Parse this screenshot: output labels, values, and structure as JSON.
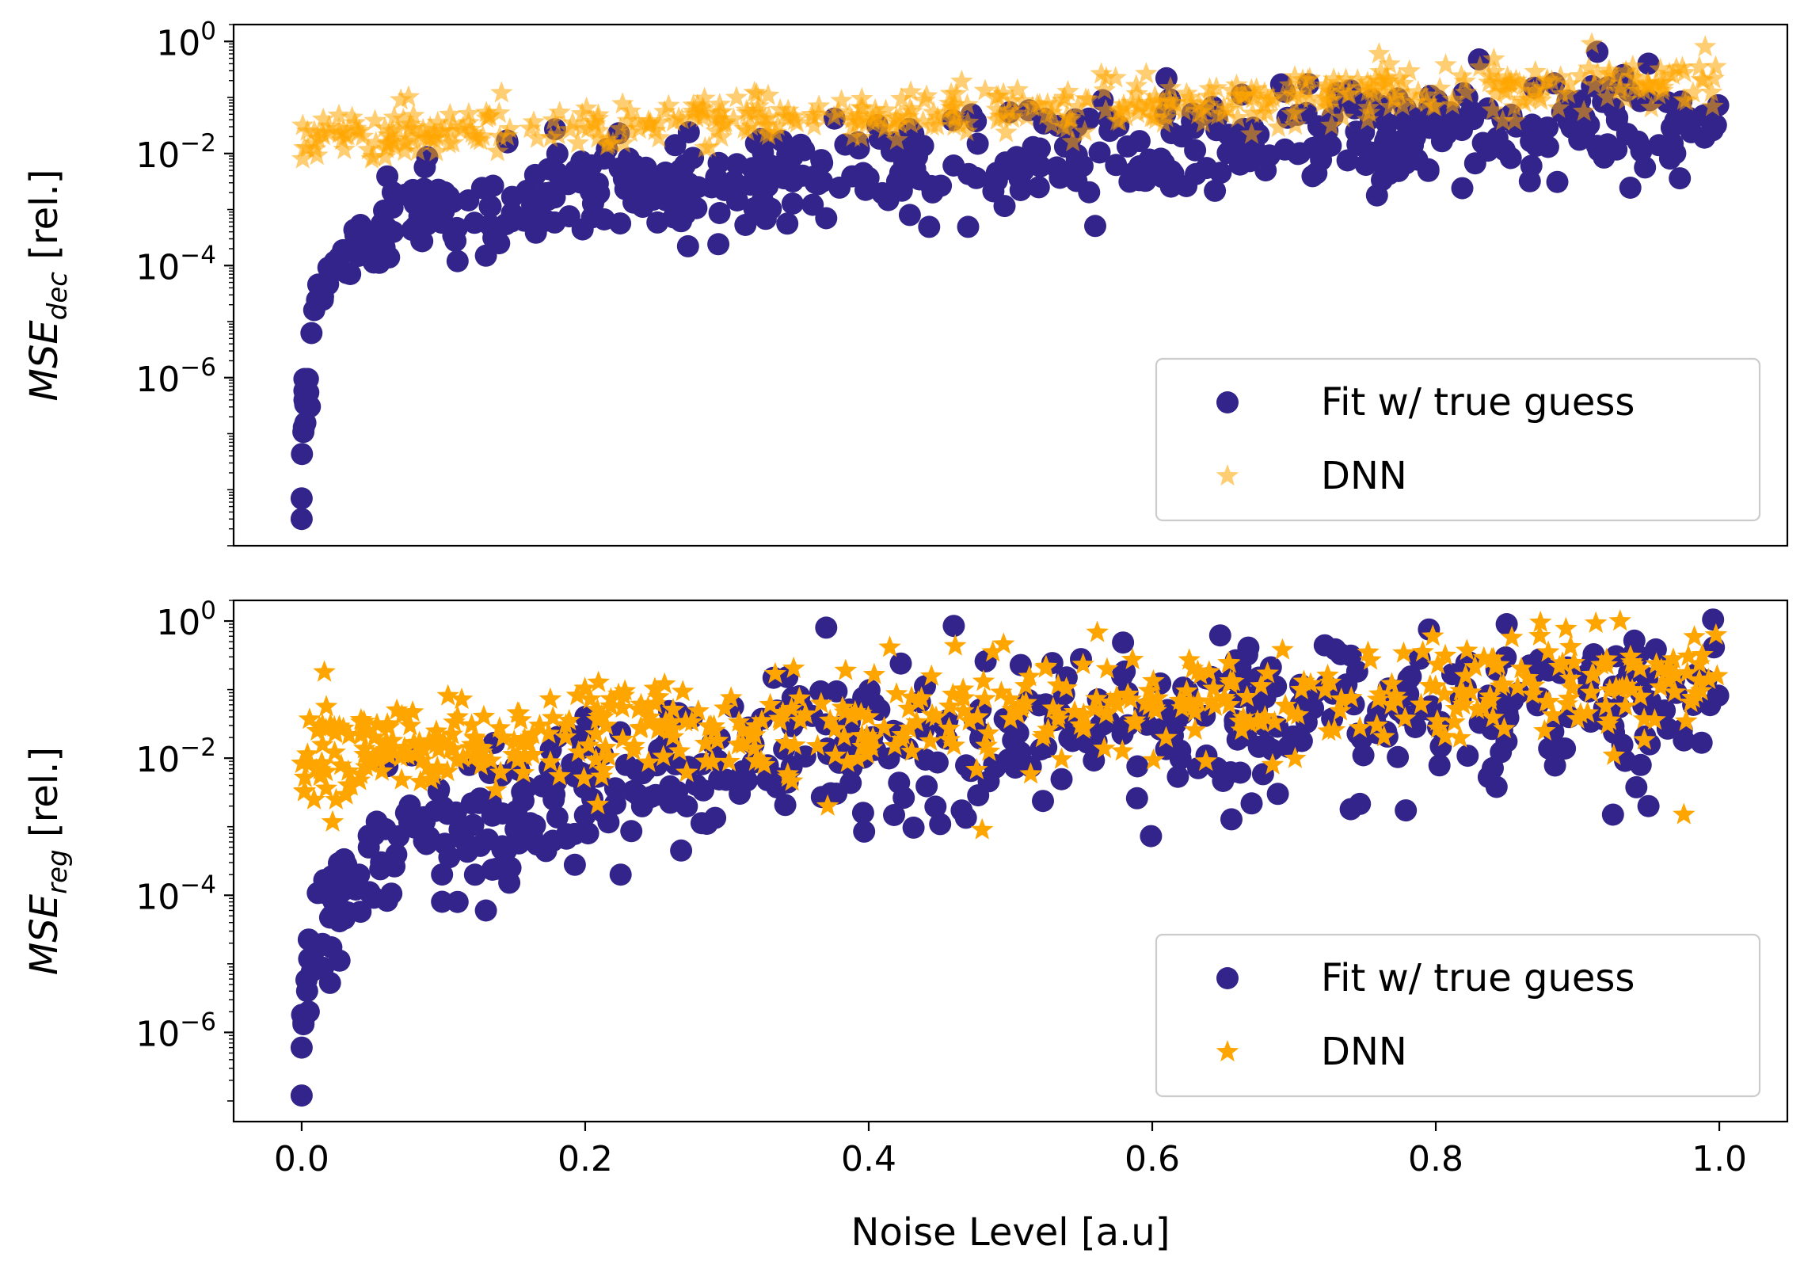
{
  "figure": {
    "xlabel": "Noise Level [a.u]",
    "xticks": [
      0.0,
      0.2,
      0.4,
      0.6,
      0.8,
      1.0
    ],
    "xtick_labels": [
      "0.0",
      "0.2",
      "0.4",
      "0.6",
      "0.8",
      "1.0"
    ],
    "xlim": [
      -0.048,
      1.048
    ]
  },
  "colors": {
    "fit": "#32248a",
    "dnn": "#ffa500"
  },
  "chart_data": [
    {
      "type": "scatter",
      "id": "top",
      "ylabel_main": "MSE",
      "ylabel_sub": "dec",
      "ylabel_suffix": " [rel.]",
      "yscale": "log",
      "ylim": [
        1e-09,
        2
      ],
      "yticks": [
        {
          "value": 1,
          "base": "10",
          "exp": "0"
        },
        {
          "value": 0.01,
          "base": "10",
          "exp": "−2"
        },
        {
          "value": 0.0001,
          "base": "10",
          "exp": "−4"
        },
        {
          "value": 1e-06,
          "base": "10",
          "exp": "−6"
        }
      ],
      "legend": {
        "position": "lower right",
        "entries": [
          "Fit w/ true guess",
          "DNN"
        ]
      },
      "series": [
        {
          "name": "Fit w/ true guess",
          "marker": "circle",
          "alpha": 1,
          "trend": [
            [
              0.0,
              5e-09
            ],
            [
              0.002,
              3e-07
            ],
            [
              0.006,
              3e-06
            ],
            [
              0.012,
              3e-05
            ],
            [
              0.025,
              0.0001
            ],
            [
              0.05,
              0.0003
            ],
            [
              0.08,
              0.0007
            ],
            [
              0.12,
              0.0012
            ],
            [
              0.2,
              0.002
            ],
            [
              0.3,
              0.003
            ],
            [
              0.4,
              0.005
            ],
            [
              0.5,
              0.008
            ],
            [
              0.6,
              0.012
            ],
            [
              0.7,
              0.018
            ],
            [
              0.8,
              0.025
            ],
            [
              0.9,
              0.032
            ],
            [
              1.0,
              0.04
            ]
          ],
          "spread_decades": 0.45,
          "notable_points": [
            [
              0.0,
              3e-09
            ],
            [
              0.0,
              7e-09
            ],
            [
              0.002,
              4e-07
            ],
            [
              0.11,
              0.00012
            ],
            [
              0.13,
              0.00015
            ],
            [
              0.37,
              0.0007
            ],
            [
              0.52,
              0.0025
            ],
            [
              0.61,
              0.22
            ],
            [
              0.68,
              0.005
            ],
            [
              0.95,
              0.4
            ]
          ]
        },
        {
          "name": "DNN",
          "marker": "star",
          "alpha": 0.55,
          "trend": [
            [
              0.0,
              0.02
            ],
            [
              0.1,
              0.022
            ],
            [
              0.2,
              0.028
            ],
            [
              0.3,
              0.035
            ],
            [
              0.4,
              0.045
            ],
            [
              0.5,
              0.06
            ],
            [
              0.6,
              0.08
            ],
            [
              0.7,
              0.1
            ],
            [
              0.8,
              0.13
            ],
            [
              0.9,
              0.16
            ],
            [
              1.0,
              0.2
            ]
          ],
          "spread_decades": 0.22,
          "notable_points": [
            [
              0.07,
              0.09
            ],
            [
              0.76,
              0.6
            ],
            [
              0.91,
              0.9
            ],
            [
              0.99,
              0.8
            ]
          ]
        }
      ]
    },
    {
      "type": "scatter",
      "id": "bottom",
      "ylabel_main": "MSE",
      "ylabel_sub": "reg",
      "ylabel_suffix": " [rel.]",
      "yscale": "log",
      "ylim": [
        5e-08,
        2
      ],
      "yticks": [
        {
          "value": 1,
          "base": "10",
          "exp": "0"
        },
        {
          "value": 0.01,
          "base": "10",
          "exp": "−2"
        },
        {
          "value": 0.0001,
          "base": "10",
          "exp": "−4"
        },
        {
          "value": 1e-06,
          "base": "10",
          "exp": "−6"
        }
      ],
      "legend": {
        "position": "lower right",
        "entries": [
          "Fit w/ true guess",
          "DNN"
        ]
      },
      "series": [
        {
          "name": "Fit w/ true guess",
          "marker": "circle",
          "alpha": 1,
          "trend": [
            [
              0.0,
              1e-06
            ],
            [
              0.005,
              1e-05
            ],
            [
              0.015,
              5e-05
            ],
            [
              0.04,
              0.0002
            ],
            [
              0.08,
              0.0008
            ],
            [
              0.15,
              0.002
            ],
            [
              0.25,
              0.005
            ],
            [
              0.35,
              0.01
            ],
            [
              0.5,
              0.02
            ],
            [
              0.6,
              0.03
            ],
            [
              0.7,
              0.04
            ],
            [
              0.8,
              0.05
            ],
            [
              0.9,
              0.06
            ],
            [
              1.0,
              0.07
            ]
          ],
          "spread_decades": 0.55,
          "notable_points": [
            [
              0.0,
              1.2e-07
            ],
            [
              0.0,
              6e-07
            ],
            [
              0.005,
              2e-06
            ],
            [
              0.11,
              8e-05
            ],
            [
              0.13,
              6e-05
            ],
            [
              0.225,
              0.0002
            ],
            [
              0.37,
              0.8
            ],
            [
              0.46,
              0.85
            ],
            [
              0.74,
              0.0018
            ],
            [
              0.85,
              0.9
            ],
            [
              0.925,
              0.0015
            ],
            [
              0.95,
              0.002
            ]
          ]
        },
        {
          "name": "DNN",
          "marker": "star",
          "alpha": 1,
          "trend": [
            [
              0.0,
              0.01
            ],
            [
              0.1,
              0.015
            ],
            [
              0.2,
              0.02
            ],
            [
              0.3,
              0.025
            ],
            [
              0.4,
              0.035
            ],
            [
              0.5,
              0.05
            ],
            [
              0.6,
              0.06
            ],
            [
              0.7,
              0.07
            ],
            [
              0.8,
              0.08
            ],
            [
              0.9,
              0.09
            ],
            [
              1.0,
              0.1
            ]
          ],
          "spread_decades": 0.4,
          "notable_points": [
            [
              0.016,
              0.18
            ],
            [
              0.48,
              0.0009
            ],
            [
              0.93,
              1.0
            ],
            [
              0.975,
              0.0015
            ]
          ]
        }
      ]
    }
  ]
}
